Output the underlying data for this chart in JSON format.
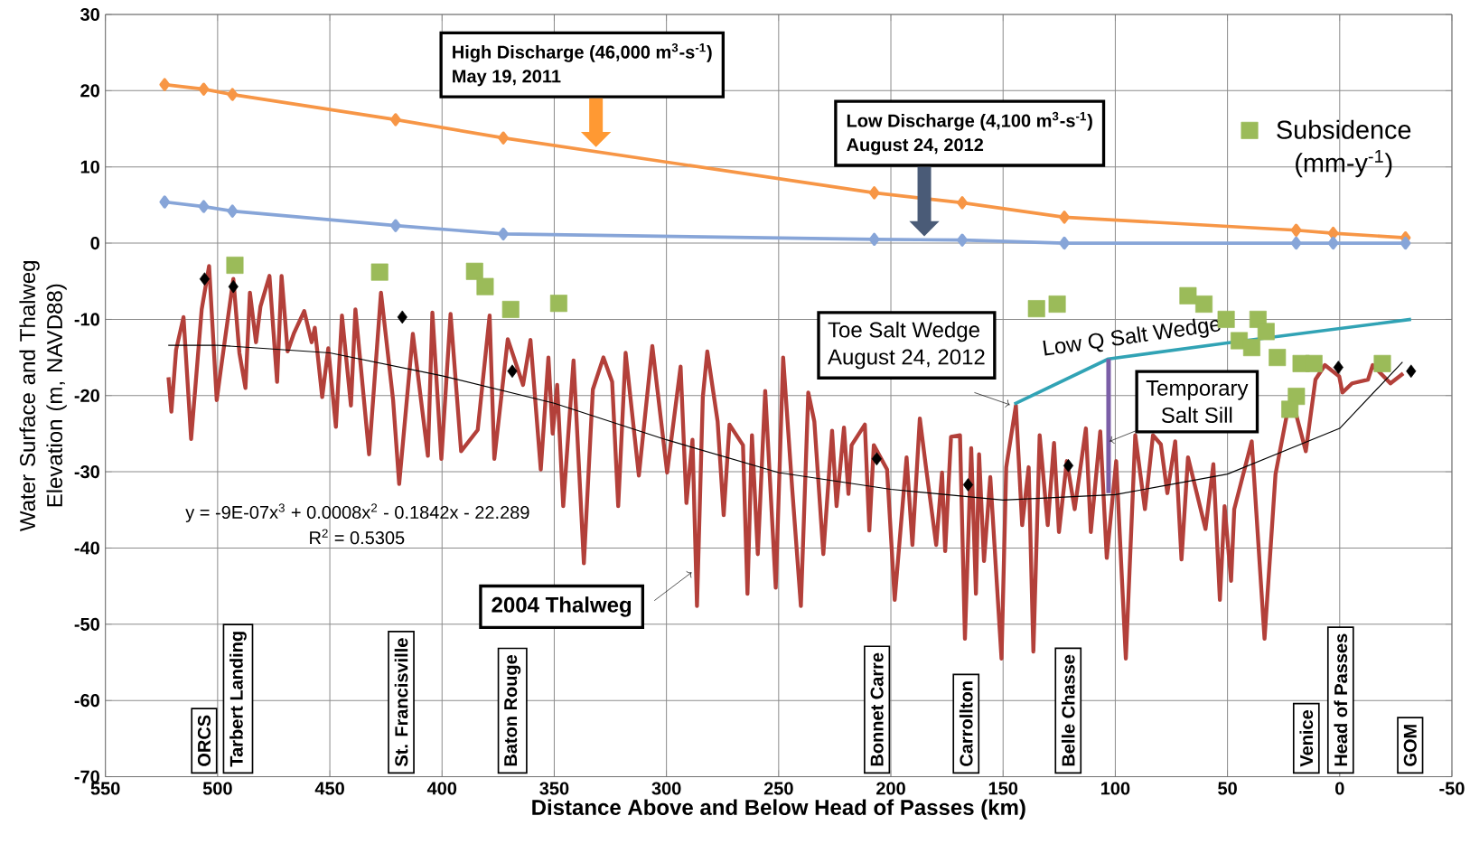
{
  "chart_data": {
    "type": "line",
    "xlabel": "Distance Above and Below Head of Passes (km)",
    "ylabel": "Water Surface and Thalweg Elevation (m, NAVD88)",
    "xlim": [
      550,
      -50
    ],
    "xticks": [
      550,
      500,
      450,
      400,
      350,
      300,
      250,
      200,
      150,
      100,
      50,
      0,
      -50
    ],
    "ylim": [
      -70,
      30
    ],
    "yticks": [
      -70,
      -60,
      -50,
      -40,
      -30,
      -20,
      -10,
      0,
      10,
      20,
      30
    ],
    "grid": true,
    "legend": "top right",
    "series": [
      {
        "type": "line",
        "marker": "diamond",
        "color": "#f79646",
        "x": [
          523.6,
          506.2,
          493.4,
          420.7,
          372.7,
          207.4,
          168.2,
          122.7,
          19.4,
          2.9,
          -29.3
        ],
        "values": [
          20.8,
          20.2,
          19.5,
          16.2,
          13.8,
          6.6,
          5.3,
          3.4,
          1.7,
          1.3,
          0.7
        ]
      },
      {
        "type": "line",
        "marker": "diamond",
        "color": "#87a5d8",
        "x": [
          523.6,
          506.2,
          493.4,
          420.7,
          372.7,
          207.4,
          168.2,
          122.7,
          19.4,
          2.9,
          -29.3
        ],
        "values": [
          5.4,
          4.8,
          4.2,
          2.3,
          1.2,
          0.5,
          0.4,
          0,
          0,
          0,
          0
        ]
      },
      {
        "type": "line",
        "marker": "none",
        "color": "#b3403a",
        "x": [
          521.9,
          520.6,
          518.5,
          515.2,
          511.8,
          507.1,
          503.8,
          500.4,
          498.4,
          493,
          490.3,
          487.6,
          485.6,
          482.9,
          480.9,
          476.9,
          473.5,
          471.5,
          468.8,
          466.1,
          461.4,
          458.1,
          456.7,
          453.4,
          450.7,
          447.3,
          444.6,
          440.6,
          438.6,
          432.5,
          427.2,
          421.8,
          419.1,
          413,
          406.3,
          404.3,
          400.3,
          396.2,
          391.5,
          384.1,
          378.8,
          376.7,
          370.7,
          363.9,
          360.6,
          356,
          352.6,
          350.7,
          348.7,
          346,
          341.4,
          336.8,
          332.8,
          328.1,
          324.2,
          321.5,
          318.2,
          312.3,
          306.3,
          299.7,
          293.7,
          291.1,
          288.4,
          286.4,
          283.8,
          281.8,
          277.2,
          274.5,
          271.9,
          265.9,
          263.9,
          261.9,
          259.3,
          256,
          251.3,
          248,
          244,
          240.1,
          236.8,
          234.1,
          230.1,
          226.2,
          224.2,
          220.9,
          218.9,
          217.5,
          211.6,
          209.6,
          207.6,
          201.7,
          198.3,
          193,
          190.4,
          187.1,
          184.4,
          179.8,
          177.2,
          175.8,
          173.2,
          169.2,
          167,
          164.2,
          162.1,
          160.7,
          158.5,
          155.7,
          150.7,
          148.6,
          144.3,
          141.5,
          138.6,
          136.5,
          133.7,
          130.1,
          127.3,
          125.1,
          121.6,
          118.1,
          113.1,
          110.9,
          106.7,
          103.8,
          99.6,
          95.3,
          91.1,
          86.8,
          83.2,
          79.7,
          76.8,
          73.3,
          70.5,
          67.6,
          59.8,
          56.3,
          53.4,
          51.3,
          48.4,
          47,
          39.2,
          33.5,
          28.6,
          23.6,
          19.3,
          15.1,
          10.8,
          6.6,
          0.2,
          -1.2,
          -5.5,
          -12.6,
          -14.7,
          -22.6,
          -28.3
        ],
        "values": [
          -17.6,
          -22.1,
          -14,
          -9.7,
          -25.7,
          -8.7,
          -3,
          -20.6,
          -16.2,
          -4.7,
          -14.4,
          -19,
          -6.5,
          -13,
          -8.3,
          -4.3,
          -18.2,
          -4.3,
          -14.2,
          -11.9,
          -8.9,
          -13,
          -11.1,
          -20.2,
          -13.8,
          -24.1,
          -9.5,
          -21.3,
          -8.7,
          -27.7,
          -6.5,
          -20.6,
          -31.6,
          -11.9,
          -27.9,
          -9.1,
          -28.3,
          -9.3,
          -27.3,
          -24.5,
          -9.5,
          -28.3,
          -12.6,
          -18.6,
          -12.7,
          -29.7,
          -15,
          -25,
          -18.6,
          -34.5,
          -15.4,
          -42,
          -19.2,
          -15,
          -18.2,
          -34.5,
          -14.4,
          -30.5,
          -13.5,
          -30.1,
          -16.2,
          -34.1,
          -25.8,
          -47.6,
          -20.2,
          -14.2,
          -23.4,
          -35.7,
          -23.8,
          -26.5,
          -46,
          -25.2,
          -40.8,
          -19.4,
          -45.2,
          -15,
          -32.1,
          -47.6,
          -19.6,
          -23.4,
          -40.8,
          -24.6,
          -34.5,
          -24.2,
          -32.9,
          -26.5,
          -23.8,
          -37.7,
          -26.5,
          -29.7,
          -46.8,
          -28.1,
          -39.6,
          -23,
          -29.3,
          -39.6,
          -30.1,
          -40.4,
          -25.4,
          -25.2,
          -51.9,
          -26.9,
          -46,
          -27.7,
          -41.7,
          -30.7,
          -54.5,
          -29.4,
          -21.3,
          -37,
          -29.4,
          -53.6,
          -25.2,
          -37,
          -26.2,
          -37.9,
          -28.6,
          -34.9,
          -24.3,
          -37.9,
          -24.7,
          -41.3,
          -28.6,
          -54.5,
          -25.2,
          -34.9,
          -25.2,
          -26.4,
          -32.8,
          -26,
          -41.5,
          -28.1,
          -37.5,
          -29,
          -46.8,
          -34.5,
          -44.3,
          -34.9,
          -26,
          -51.9,
          -30.3,
          -22.6,
          -22.6,
          -27.3,
          -17.9,
          -16,
          -17.5,
          -19.6,
          -18.4,
          -17.9,
          -16,
          -18.4,
          -17.1
        ]
      },
      {
        "type": "line",
        "marker": "none",
        "color": "#000000",
        "x": [
          522,
          500,
          450,
          400,
          350,
          300,
          250,
          200,
          150,
          100,
          50,
          0,
          -28
        ],
        "values": [
          -13.4,
          -13.4,
          -14.4,
          -17.4,
          -21,
          -25.8,
          -30.1,
          -32.3,
          -33.7,
          -33,
          -30.3,
          -24.3,
          -15.6
        ]
      },
      {
        "type": "scatter",
        "marker": "diamond",
        "color": "#000000",
        "x": [
          505.8,
          493,
          417.7,
          368.7,
          206.3,
          165.6,
          120.9,
          0.6,
          -31.8
        ],
        "values": [
          -4.7,
          -5.7,
          -9.7,
          -16.8,
          -28.3,
          -31.7,
          -29.2,
          -16.3,
          -16.8
        ]
      },
      {
        "type": "scatter",
        "marker": "square",
        "color": "#9bbb59",
        "name": "Subsidence (mm-y$^{-1}$)",
        "x": [
          492.3,
          427.8,
          385.5,
          380.8,
          369.4,
          348,
          135.1,
          125.9,
          67.6,
          60.5,
          50.6,
          36.4,
          32.8,
          44.8,
          39.2,
          27.8,
          17.2,
          11.5,
          19.3,
          22.2,
          -19
        ],
        "values": [
          -2.9,
          -3.8,
          -3.7,
          -5.7,
          -8.7,
          -7.9,
          -8.6,
          -8,
          -6.9,
          -8,
          -10,
          -10,
          -11.6,
          -12.8,
          -13.7,
          -15,
          -15.8,
          -15.8,
          -20.1,
          -21.8,
          -15.8
        ]
      },
      {
        "type": "line",
        "marker": "none",
        "color": "#31a3b5",
        "x": [
          145,
          103.1,
          50.1,
          -31.8
        ],
        "values": [
          -21.1,
          -15.2,
          -13.1,
          -10
        ]
      },
      {
        "type": "line",
        "marker": "none",
        "color": "#7b5ea7",
        "x": [
          103,
          103
        ],
        "values": [
          -15.2,
          -32.8
        ]
      }
    ],
    "annotations": [
      "High Discharge (46,000 m$^{3}$-s$^{-1}$)",
      "May 19, 2011",
      "Low Discharge (4,100 m$^{3}$-s$^{-1}$)",
      "August 24, 2012",
      "Toe Salt Wedge",
      "August 24, 2012",
      "Low Q Salt Wedge",
      {
        "text": "Temporary",
        "x": 102.5,
        "y": -26
      },
      "Salt Sill",
      {
        "text": "2004 Thalweg",
        "x": 288.8,
        "y": -43.2
      },
      "y = -9E-07x$^{3}$ + 0.0008x$^{2}$ - 0.1842x - 22.289",
      "R$^{2}$ = 0.5305",
      "ORCS",
      "Tarbert  Landing",
      "St. Francisville",
      "Baton Rouge",
      "Bonnet Carre",
      "Carrollton",
      "Belle Chasse",
      "Venice",
      "Head of Passes",
      "GOM"
    ]
  }
}
